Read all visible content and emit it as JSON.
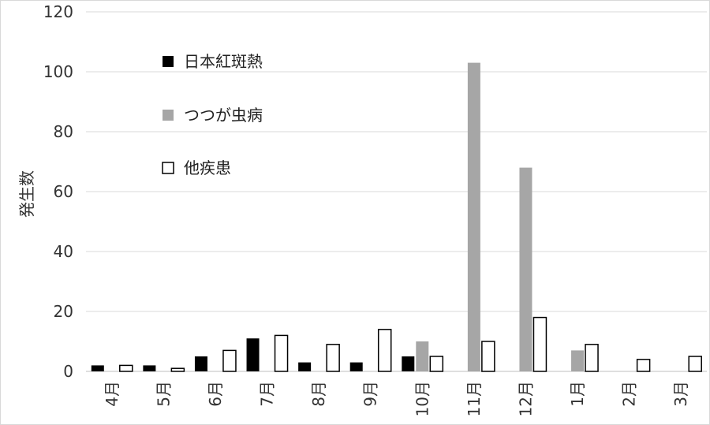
{
  "chart_data": {
    "type": "bar",
    "title": "",
    "xlabel": "",
    "ylabel": "発生数",
    "ylim": [
      0,
      120
    ],
    "yticks": [
      0,
      20,
      40,
      60,
      80,
      100,
      120
    ],
    "grid": true,
    "legend_position": "top-left",
    "categories": [
      "4月",
      "5月",
      "6月",
      "7月",
      "8月",
      "9月",
      "10月",
      "11月",
      "12月",
      "1月",
      "2月",
      "3月"
    ],
    "series": [
      {
        "name": "日本紅斑熱",
        "color": "#000000",
        "values": [
          2,
          2,
          5,
          11,
          3,
          3,
          5,
          0,
          0,
          0,
          0,
          0
        ]
      },
      {
        "name": "つつが虫病",
        "color": "#a6a6a6",
        "values": [
          0,
          0,
          0,
          0,
          0,
          0,
          10,
          103,
          68,
          7,
          0,
          0
        ]
      },
      {
        "name": "他疾患",
        "color": "#ffffff",
        "values": [
          2,
          1,
          7,
          12,
          9,
          14,
          5,
          10,
          18,
          9,
          4,
          5
        ]
      }
    ]
  }
}
